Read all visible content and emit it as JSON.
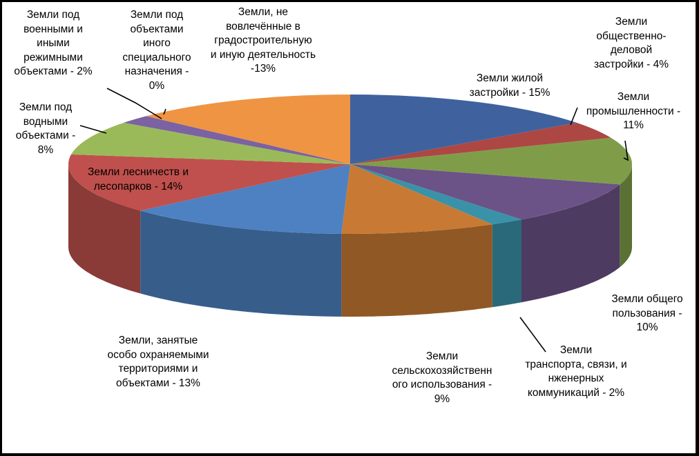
{
  "chart_data": {
    "type": "pie",
    "title": "",
    "style": "3d-exploded-pie",
    "colors": {
      "background": "#000000",
      "plot_area": "#FFFFFF",
      "label_text": "#000000"
    },
    "slices": [
      {
        "label": "Земли жилой застройки - 15%",
        "value": 15,
        "color": "#3F629F"
      },
      {
        "label": "Земли общественно-деловой застройки - 4%",
        "value": 4,
        "color": "#AD4744"
      },
      {
        "label": "Земли промышленности - 11%",
        "value": 11,
        "color": "#7F9D48"
      },
      {
        "label": "Земли общего пользования - 10%",
        "value": 10,
        "color": "#6B5287"
      },
      {
        "label": "Земли транспорта, связи, и нженерных коммуникаций - 2%",
        "value": 2,
        "color": "#3A92A8"
      },
      {
        "label": "Земли сельскохозяйственного использования - 9%",
        "value": 9,
        "color": "#C87A34"
      },
      {
        "label": "Земли, занятые особо охраняемыми территориями и объектами - 13%",
        "value": 13,
        "color": "#4D81C1"
      },
      {
        "label": "Земли лесничеств и лесопарков - 14%",
        "value": 14,
        "color": "#C0504D"
      },
      {
        "label": "Земли под водными объектами - 8%",
        "value": 8,
        "color": "#9ABA59"
      },
      {
        "label": "Земли под военными и иными режимными объектами - 2%",
        "value": 2,
        "color": "#7B62A2"
      },
      {
        "label": "Земли под объектами иного специального назначения - 0%",
        "value": 0,
        "color": "#48A2BE"
      },
      {
        "label": "Земли, не вовлечённые в градостроительную и иную деятельность -13%",
        "value": 13,
        "color": "#EF9443"
      }
    ],
    "label_lines": [
      "Земли жилой\nзастройки - 15%",
      "Земли\nобщественно-\nделовой\nзастройки - 4%",
      "Земли\nпромышленности -\n11%",
      "Земли общего\nпользования -\n10%",
      "Земли\nтранспорта, связи, и\nнженерных\nкоммуникаций - 2%",
      "Земли\nсельскохозяйственн\nого использования -\n9%",
      "Земли, занятые\nособо охраняемыми\nтерриториями и\nобъектами - 13%",
      "Земли лесничеств и\nлесопарков - 14%",
      "Земли под\nводными\nобъектами -\n8%",
      "Земли под\nвоенными и\nиными\nрежимными\nобъектами - 2%",
      "Земли под\nобъектами\nиного\nспециального\nназначения -\n0%",
      "Земли, не\nвовлечённые в\nградостроительную\nи иную деятельность\n-13%"
    ]
  }
}
